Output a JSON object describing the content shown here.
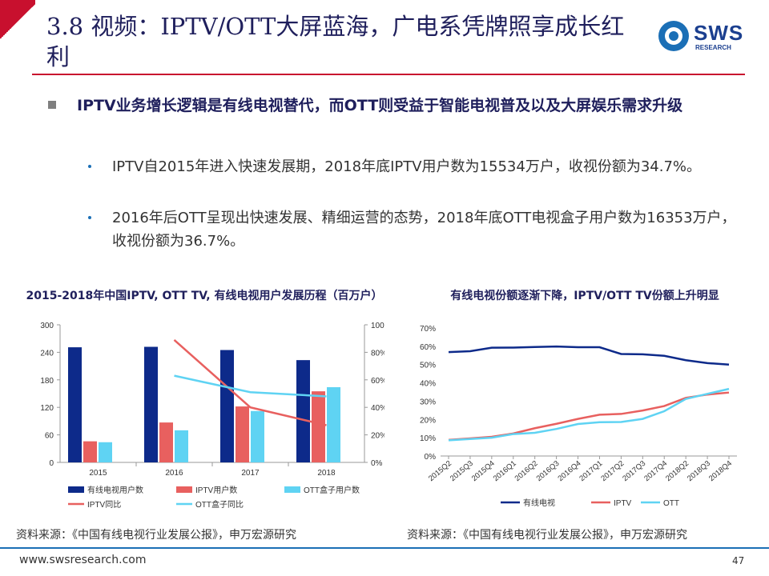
{
  "slide": {
    "title": "3.8 视频：IPTV/OTT大屏蓝海，广电系凭牌照享成长红利",
    "logo_text": "SWS",
    "logo_sub": "RESEARCH",
    "main_bullet": "IPTV业务增长逻辑是有线电视替代，而OTT则受益于智能电视普及以及大屏娱乐需求升级",
    "sub_bullets": [
      "IPTV自2015年进入快速发展期，2018年底IPTV用户数为15534万户，收视份额为34.7%。",
      "2016年后OTT呈现出快速发展、精细运营的态势，2018年底OTT电视盒子用户数为16353万户，收视份额为36.7%。"
    ],
    "chart1_title": "2015-2018年中国IPTV, OTT TV, 有线电视用户发展历程（百万户）",
    "chart2_title": "有线电视份额逐渐下降，IPTV/OTT TV份额上升明显",
    "source_left": "资料来源：《中国有线电视行业发展公报》，申万宏源研究",
    "source_right": "资料来源：《中国有线电视行业发展公报》，申万宏源研究",
    "footer_url": "www.swsresearch.com",
    "page_number": "47"
  },
  "colors": {
    "accent_red": "#c8102e",
    "navy": "#1f1f5c",
    "cable_blue": "#0d2a8a",
    "iptv_red": "#e8605f",
    "ott_cyan": "#5fd3f3",
    "brand_blue": "#1b6fb6"
  },
  "chart_data": [
    {
      "type": "bar",
      "categories": [
        "2015",
        "2016",
        "2017",
        "2018"
      ],
      "series": [
        {
          "name": "有线电视用户数",
          "values": [
            251,
            252,
            245,
            223
          ],
          "color": "#0d2a8a"
        },
        {
          "name": "IPTV用户数",
          "values": [
            46,
            87,
            122,
            155
          ],
          "color": "#e8605f"
        },
        {
          "name": "OTT盒子用户数",
          "values": [
            44,
            70,
            112,
            164
          ],
          "color": "#5fd3f3"
        }
      ],
      "line_series": [
        {
          "name": "IPTV同比",
          "values": [
            null,
            89,
            40,
            27
          ],
          "color": "#e8605f",
          "axis": "right"
        },
        {
          "name": "OTT盒子同比",
          "values": [
            null,
            63,
            51,
            48
          ],
          "color": "#5fd3f3",
          "axis": "right"
        }
      ],
      "y_left": {
        "ticks": [
          "0",
          "60",
          "120",
          "180",
          "240",
          "300"
        ],
        "ylim": [
          0,
          300
        ]
      },
      "y_right": {
        "ticks": [
          "0%",
          "20%",
          "40%",
          "60%",
          "80%",
          "100%"
        ],
        "ylim": [
          0,
          100
        ]
      },
      "legend": [
        "有线电视用户数",
        "IPTV用户数",
        "OTT盒子用户数",
        "IPTV同比",
        "OTT盒子同比"
      ]
    },
    {
      "type": "line",
      "x": [
        "2015Q2",
        "2015Q3",
        "2015Q4",
        "2016Q1",
        "2016Q2",
        "2016Q3",
        "2016Q4",
        "2017Q1",
        "2017Q2",
        "2017Q3",
        "2017Q4",
        "2018Q2",
        "2018Q3",
        "2018Q4"
      ],
      "series": [
        {
          "name": "有线电视",
          "color": "#0d2a8a",
          "values": [
            56.8,
            57.3,
            59.2,
            59.3,
            59.6,
            59.9,
            59.5,
            59.5,
            55.8,
            55.6,
            54.8,
            52.4,
            50.8,
            50.0
          ]
        },
        {
          "name": "IPTV",
          "color": "#e8605f",
          "values": [
            8.8,
            9.6,
            10.5,
            12.3,
            15.2,
            17.6,
            20.3,
            22.6,
            23.0,
            24.9,
            27.3,
            31.8,
            33.6,
            34.7
          ]
        },
        {
          "name": "OTT",
          "color": "#5fd3f3",
          "values": [
            8.6,
            9.3,
            10.0,
            12.0,
            12.7,
            14.8,
            17.5,
            18.5,
            18.6,
            20.3,
            24.5,
            31.2,
            34.0,
            36.7
          ]
        }
      ],
      "y_ticks": [
        "0%",
        "10%",
        "20%",
        "30%",
        "40%",
        "50%",
        "60%",
        "70%"
      ],
      "ylim": [
        0,
        70
      ],
      "legend": [
        "有线电视",
        "IPTV",
        "OTT"
      ]
    }
  ]
}
